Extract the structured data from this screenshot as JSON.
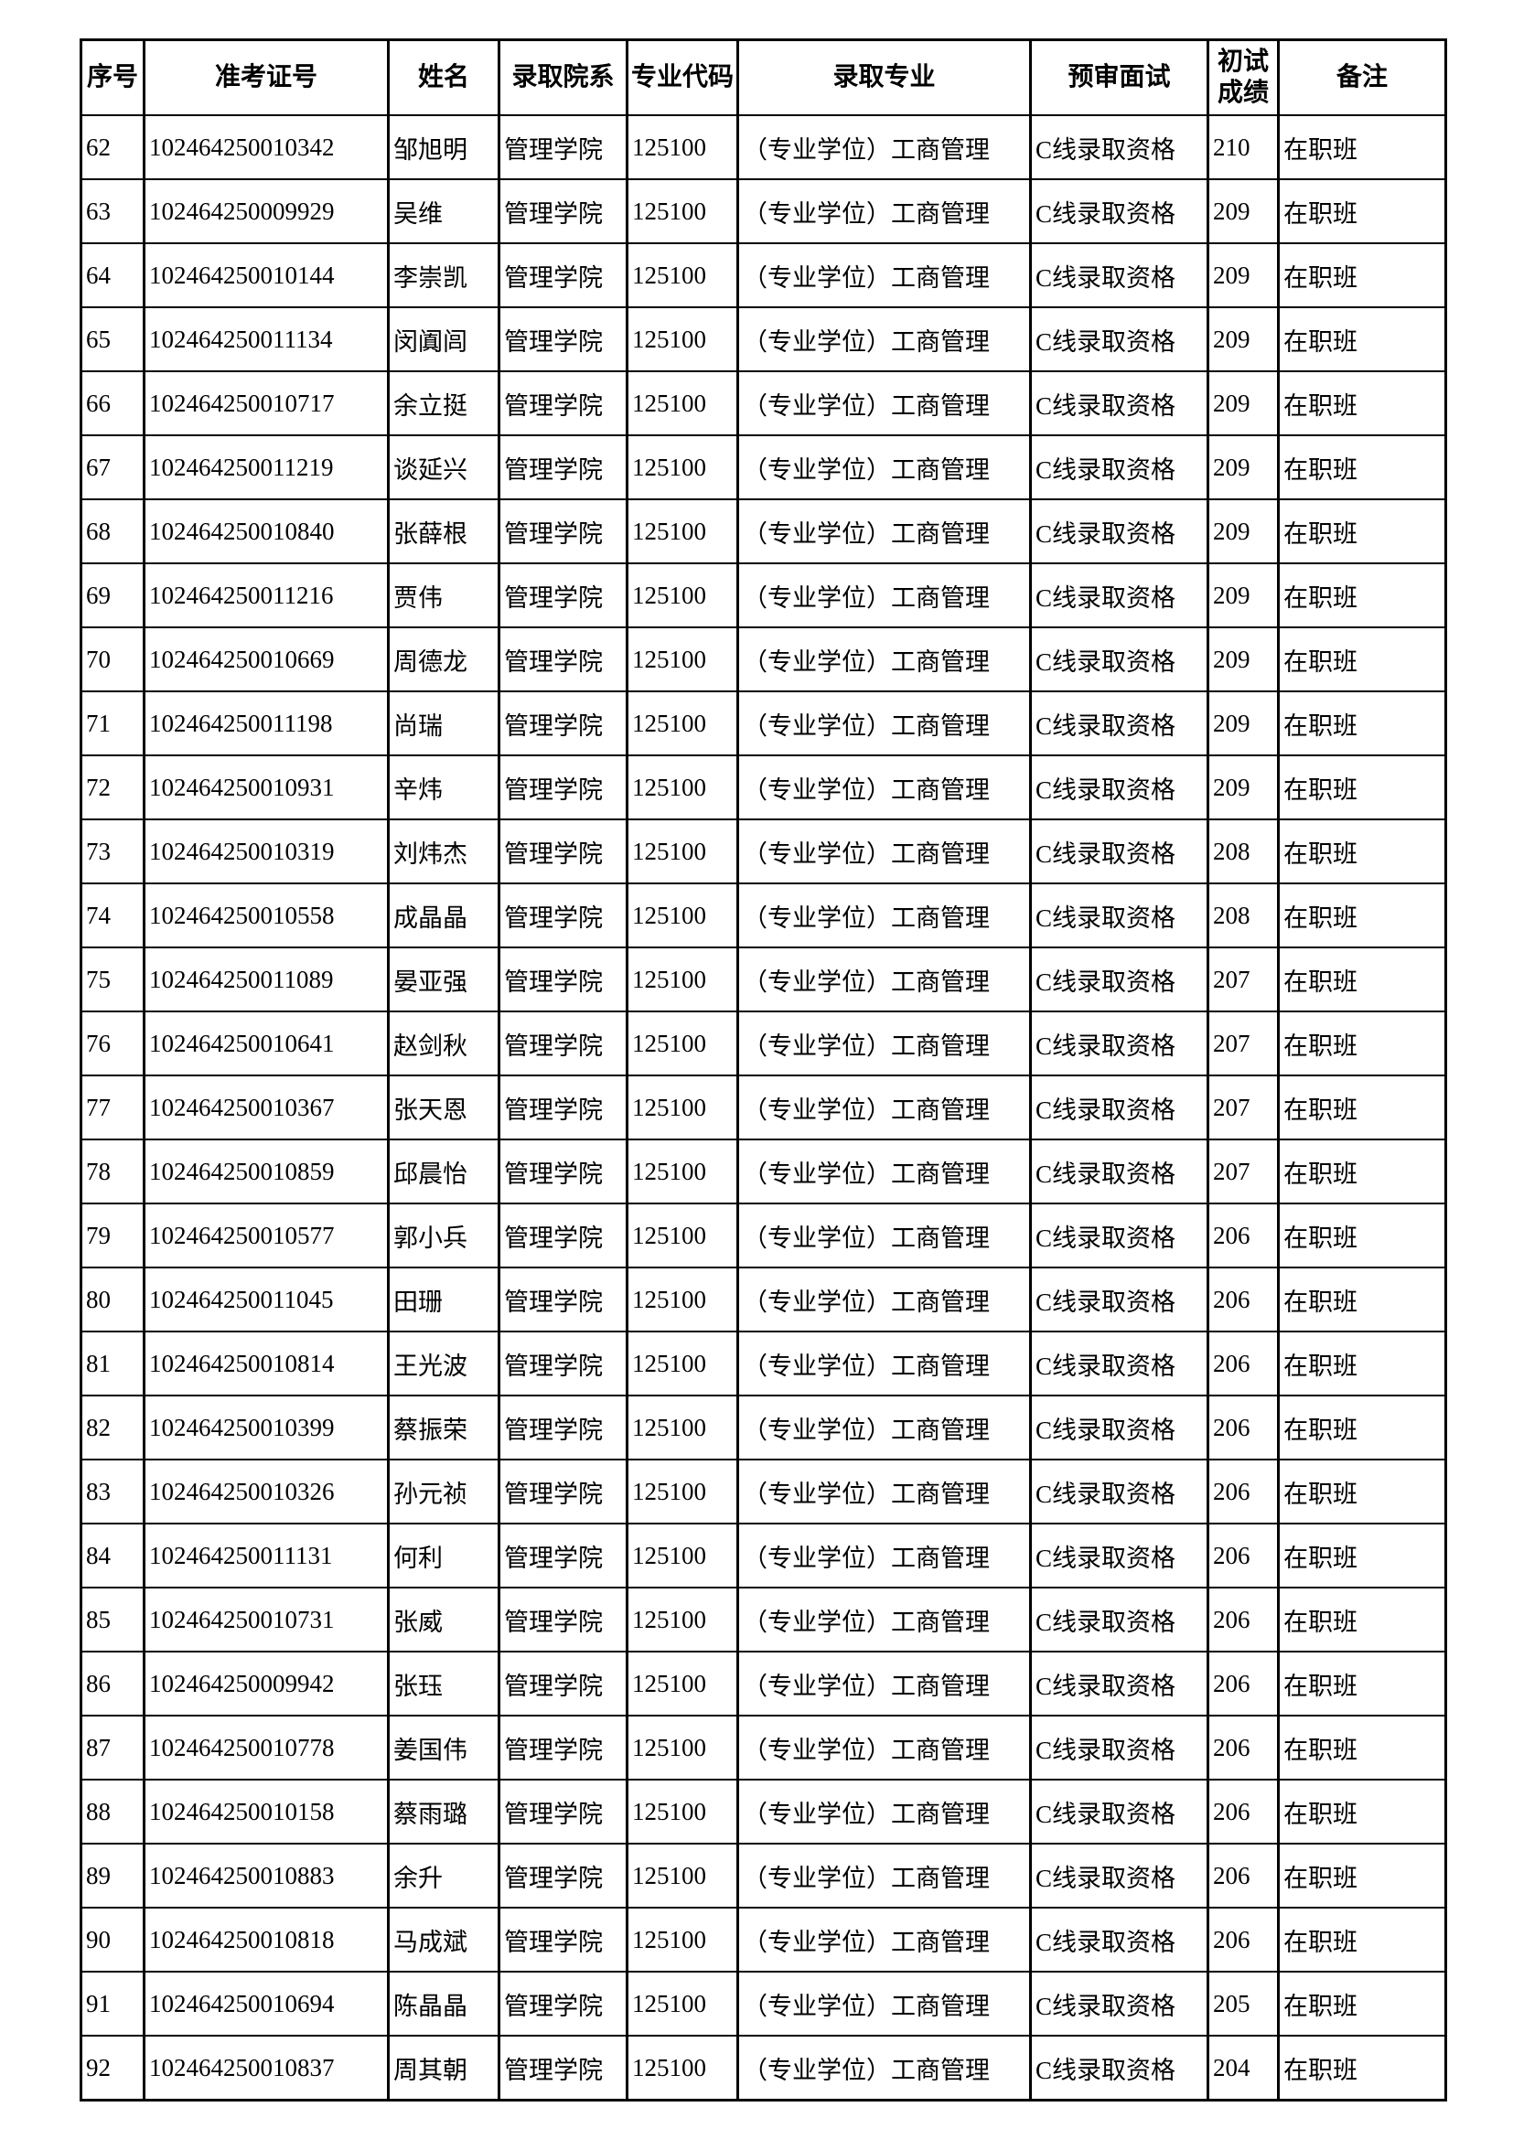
{
  "table": {
    "headers": [
      "序号",
      "准考证号",
      "姓名",
      "录取院系",
      "专业代码",
      "录取专业",
      "预审面试",
      "初试成绩",
      "备注"
    ],
    "rows": [
      [
        "62",
        "102464250010342",
        "邹旭明",
        "管理学院",
        "125100",
        "（专业学位）工商管理",
        "C线录取资格",
        "210",
        "在职班"
      ],
      [
        "63",
        "102464250009929",
        "吴维",
        "管理学院",
        "125100",
        "（专业学位）工商管理",
        "C线录取资格",
        "209",
        "在职班"
      ],
      [
        "64",
        "102464250010144",
        "李崇凯",
        "管理学院",
        "125100",
        "（专业学位）工商管理",
        "C线录取资格",
        "209",
        "在职班"
      ],
      [
        "65",
        "102464250011134",
        "闵阗闾",
        "管理学院",
        "125100",
        "（专业学位）工商管理",
        "C线录取资格",
        "209",
        "在职班"
      ],
      [
        "66",
        "102464250010717",
        "余立挺",
        "管理学院",
        "125100",
        "（专业学位）工商管理",
        "C线录取资格",
        "209",
        "在职班"
      ],
      [
        "67",
        "102464250011219",
        "谈延兴",
        "管理学院",
        "125100",
        "（专业学位）工商管理",
        "C线录取资格",
        "209",
        "在职班"
      ],
      [
        "68",
        "102464250010840",
        "张薛根",
        "管理学院",
        "125100",
        "（专业学位）工商管理",
        "C线录取资格",
        "209",
        "在职班"
      ],
      [
        "69",
        "102464250011216",
        "贾伟",
        "管理学院",
        "125100",
        "（专业学位）工商管理",
        "C线录取资格",
        "209",
        "在职班"
      ],
      [
        "70",
        "102464250010669",
        "周德龙",
        "管理学院",
        "125100",
        "（专业学位）工商管理",
        "C线录取资格",
        "209",
        "在职班"
      ],
      [
        "71",
        "102464250011198",
        "尚瑞",
        "管理学院",
        "125100",
        "（专业学位）工商管理",
        "C线录取资格",
        "209",
        "在职班"
      ],
      [
        "72",
        "102464250010931",
        "辛炜",
        "管理学院",
        "125100",
        "（专业学位）工商管理",
        "C线录取资格",
        "209",
        "在职班"
      ],
      [
        "73",
        "102464250010319",
        "刘炜杰",
        "管理学院",
        "125100",
        "（专业学位）工商管理",
        "C线录取资格",
        "208",
        "在职班"
      ],
      [
        "74",
        "102464250010558",
        "成晶晶",
        "管理学院",
        "125100",
        "（专业学位）工商管理",
        "C线录取资格",
        "208",
        "在职班"
      ],
      [
        "75",
        "102464250011089",
        "晏亚强",
        "管理学院",
        "125100",
        "（专业学位）工商管理",
        "C线录取资格",
        "207",
        "在职班"
      ],
      [
        "76",
        "102464250010641",
        "赵剑秋",
        "管理学院",
        "125100",
        "（专业学位）工商管理",
        "C线录取资格",
        "207",
        "在职班"
      ],
      [
        "77",
        "102464250010367",
        "张天恩",
        "管理学院",
        "125100",
        "（专业学位）工商管理",
        "C线录取资格",
        "207",
        "在职班"
      ],
      [
        "78",
        "102464250010859",
        "邱晨怡",
        "管理学院",
        "125100",
        "（专业学位）工商管理",
        "C线录取资格",
        "207",
        "在职班"
      ],
      [
        "79",
        "102464250010577",
        "郭小兵",
        "管理学院",
        "125100",
        "（专业学位）工商管理",
        "C线录取资格",
        "206",
        "在职班"
      ],
      [
        "80",
        "102464250011045",
        "田珊",
        "管理学院",
        "125100",
        "（专业学位）工商管理",
        "C线录取资格",
        "206",
        "在职班"
      ],
      [
        "81",
        "102464250010814",
        "王光波",
        "管理学院",
        "125100",
        "（专业学位）工商管理",
        "C线录取资格",
        "206",
        "在职班"
      ],
      [
        "82",
        "102464250010399",
        "蔡振荣",
        "管理学院",
        "125100",
        "（专业学位）工商管理",
        "C线录取资格",
        "206",
        "在职班"
      ],
      [
        "83",
        "102464250010326",
        "孙元祯",
        "管理学院",
        "125100",
        "（专业学位）工商管理",
        "C线录取资格",
        "206",
        "在职班"
      ],
      [
        "84",
        "102464250011131",
        "何利",
        "管理学院",
        "125100",
        "（专业学位）工商管理",
        "C线录取资格",
        "206",
        "在职班"
      ],
      [
        "85",
        "102464250010731",
        "张威",
        "管理学院",
        "125100",
        "（专业学位）工商管理",
        "C线录取资格",
        "206",
        "在职班"
      ],
      [
        "86",
        "102464250009942",
        "张珏",
        "管理学院",
        "125100",
        "（专业学位）工商管理",
        "C线录取资格",
        "206",
        "在职班"
      ],
      [
        "87",
        "102464250010778",
        "姜国伟",
        "管理学院",
        "125100",
        "（专业学位）工商管理",
        "C线录取资格",
        "206",
        "在职班"
      ],
      [
        "88",
        "102464250010158",
        "蔡雨璐",
        "管理学院",
        "125100",
        "（专业学位）工商管理",
        "C线录取资格",
        "206",
        "在职班"
      ],
      [
        "89",
        "102464250010883",
        "余升",
        "管理学院",
        "125100",
        "（专业学位）工商管理",
        "C线录取资格",
        "206",
        "在职班"
      ],
      [
        "90",
        "102464250010818",
        "马成斌",
        "管理学院",
        "125100",
        "（专业学位）工商管理",
        "C线录取资格",
        "206",
        "在职班"
      ],
      [
        "91",
        "102464250010694",
        "陈晶晶",
        "管理学院",
        "125100",
        "（专业学位）工商管理",
        "C线录取资格",
        "205",
        "在职班"
      ],
      [
        "92",
        "102464250010837",
        "周其朝",
        "管理学院",
        "125100",
        "（专业学位）工商管理",
        "C线录取资格",
        "204",
        "在职班"
      ]
    ]
  }
}
